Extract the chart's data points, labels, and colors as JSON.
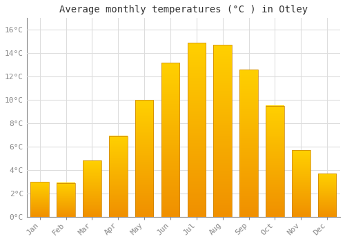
{
  "title": "Average monthly temperatures (°C ) in Otley",
  "months": [
    "Jan",
    "Feb",
    "Mar",
    "Apr",
    "May",
    "Jun",
    "Jul",
    "Aug",
    "Sep",
    "Oct",
    "Nov",
    "Dec"
  ],
  "temperatures": [
    3.0,
    2.9,
    4.8,
    6.9,
    10.0,
    13.2,
    14.9,
    14.7,
    12.6,
    9.5,
    5.7,
    3.7
  ],
  "bar_color_top": "#FFD000",
  "bar_color_bottom": "#F09000",
  "bar_edge_color": "#C88000",
  "ylim": [
    0,
    17
  ],
  "yticks": [
    0,
    2,
    4,
    6,
    8,
    10,
    12,
    14,
    16
  ],
  "ytick_labels": [
    "0°C",
    "2°C",
    "4°C",
    "6°C",
    "8°C",
    "10°C",
    "12°C",
    "14°C",
    "16°C"
  ],
  "background_color": "#FFFFFF",
  "grid_color": "#DDDDDD",
  "title_fontsize": 10,
  "tick_fontsize": 8,
  "tick_color": "#888888",
  "bar_width": 0.7,
  "n_gradient_steps": 100
}
